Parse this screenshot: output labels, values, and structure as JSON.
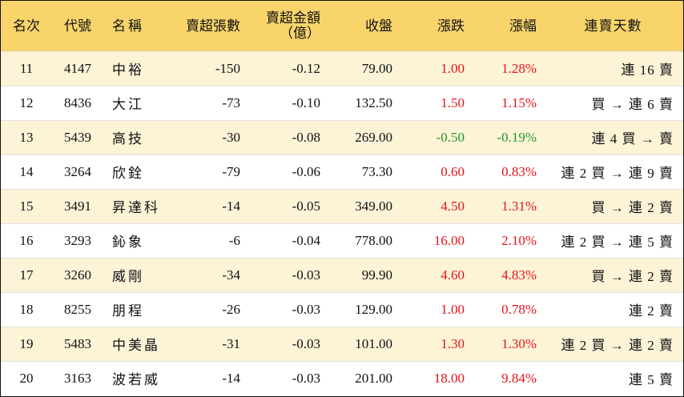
{
  "columns": {
    "rank": "名次",
    "code": "代號",
    "name": "名稱",
    "net_sell_lots": "賣超張數",
    "net_sell_amount_line1": "賣超金額",
    "net_sell_amount_line2": "（億）",
    "close": "收盤",
    "change": "漲跌",
    "change_pct": "漲幅",
    "streak": "連賣天數"
  },
  "colors": {
    "header_bg": "#f8d46b",
    "stripe_bg": "#fdf3d7",
    "up": "#e5141c",
    "down": "#1e9a2e"
  },
  "rows": [
    {
      "rank": "11",
      "code": "4147",
      "name": "中裕",
      "lots": "-150",
      "amount": "-0.12",
      "close": "79.00",
      "change": "1.00",
      "pct": "1.28%",
      "dir": "up",
      "streak": "連 16 賣"
    },
    {
      "rank": "12",
      "code": "8436",
      "name": "大江",
      "lots": "-73",
      "amount": "-0.10",
      "close": "132.50",
      "change": "1.50",
      "pct": "1.15%",
      "dir": "up",
      "streak": "買 → 連 6 賣"
    },
    {
      "rank": "13",
      "code": "5439",
      "name": "高技",
      "lots": "-30",
      "amount": "-0.08",
      "close": "269.00",
      "change": "-0.50",
      "pct": "-0.19%",
      "dir": "down",
      "streak": "連 4 買 → 賣"
    },
    {
      "rank": "14",
      "code": "3264",
      "name": "欣銓",
      "lots": "-79",
      "amount": "-0.06",
      "close": "73.30",
      "change": "0.60",
      "pct": "0.83%",
      "dir": "up",
      "streak": "連 2 買 → 連 9 賣"
    },
    {
      "rank": "15",
      "code": "3491",
      "name": "昇達科",
      "lots": "-14",
      "amount": "-0.05",
      "close": "349.00",
      "change": "4.50",
      "pct": "1.31%",
      "dir": "up",
      "streak": "買 → 連 2 賣"
    },
    {
      "rank": "16",
      "code": "3293",
      "name": "鈊象",
      "lots": "-6",
      "amount": "-0.04",
      "close": "778.00",
      "change": "16.00",
      "pct": "2.10%",
      "dir": "up",
      "streak": "連 2 買 → 連 5 賣"
    },
    {
      "rank": "17",
      "code": "3260",
      "name": "威剛",
      "lots": "-34",
      "amount": "-0.03",
      "close": "99.90",
      "change": "4.60",
      "pct": "4.83%",
      "dir": "up",
      "streak": "買 → 連 2 賣"
    },
    {
      "rank": "18",
      "code": "8255",
      "name": "朋程",
      "lots": "-26",
      "amount": "-0.03",
      "close": "129.00",
      "change": "1.00",
      "pct": "0.78%",
      "dir": "up",
      "streak": "連 2 賣"
    },
    {
      "rank": "19",
      "code": "5483",
      "name": "中美晶",
      "lots": "-31",
      "amount": "-0.03",
      "close": "101.00",
      "change": "1.30",
      "pct": "1.30%",
      "dir": "up",
      "streak": "連 2 買 → 連 2 賣"
    },
    {
      "rank": "20",
      "code": "3163",
      "name": "波若威",
      "lots": "-14",
      "amount": "-0.03",
      "close": "201.00",
      "change": "18.00",
      "pct": "9.84%",
      "dir": "up",
      "streak": "連 5 賣"
    }
  ]
}
